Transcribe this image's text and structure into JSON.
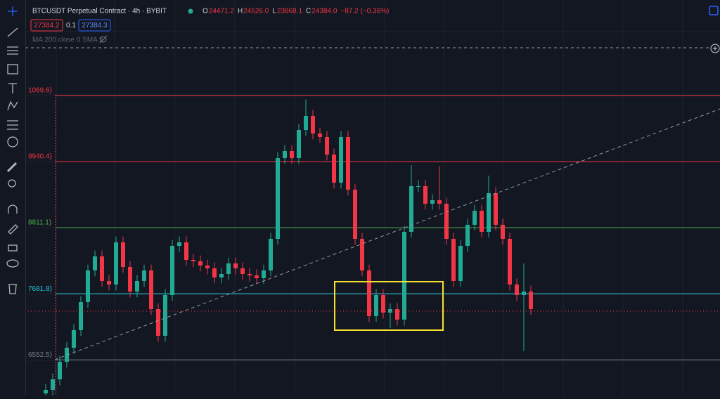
{
  "header": {
    "symbol": "BTCUSDT Perpetual Contract · 4h · BYBIT",
    "ohlc": [
      {
        "key": "O",
        "value": "24471.2"
      },
      {
        "key": "H",
        "value": "24526.0"
      },
      {
        "key": "L",
        "value": "23868.1"
      },
      {
        "key": "C",
        "value": "24384.0"
      }
    ],
    "change": "−87.2 (−0.36%)",
    "sell_price": "27384.2",
    "spread": "0.1",
    "buy_price": "27384.3",
    "indicator": "MA 200 close 0 SMA 5"
  },
  "chart_data": {
    "type": "candlestick",
    "up_color": "#22ab94",
    "down_color": "#f23645",
    "ylim": [
      15944,
      22700
    ],
    "levels": [
      {
        "value": 21069.6,
        "label": "1069.6)",
        "color": "#f23645"
      },
      {
        "value": 19940.4,
        "label": "9940.4)",
        "color": "#f23645"
      },
      {
        "value": 18811.1,
        "label": "8811.1)",
        "color": "#4caf50"
      },
      {
        "value": 17681.8,
        "label": "7681.8)",
        "color": "#26c6da"
      },
      {
        "value": 16552.5,
        "label": "6552.5)",
        "color": "#787b86"
      }
    ],
    "open": [
      15980,
      16040,
      16220,
      16520,
      16760,
      17060,
      17540,
      18080,
      18320,
      17900,
      17840,
      18560,
      18140,
      17720,
      17900,
      18080,
      17420,
      16964,
      17660,
      18500,
      18560,
      18260,
      18236,
      18164,
      18116,
      17960,
      18020,
      18200,
      18116,
      18020,
      17996,
      17948,
      18080,
      18620,
      20000,
      20120,
      20000,
      20480,
      20720,
      20420,
      20360,
      20060,
      19580,
      20360,
      19460,
      18620,
      18080,
      17300,
      17660,
      17360,
      17420,
      17240,
      18740,
      19520,
      19520,
      19220,
      19280,
      19220,
      18620,
      17900,
      18500,
      18860,
      19100,
      18740,
      19400,
      18860,
      18620,
      17840,
      17660,
      17720
    ],
    "high": [
      16140,
      16320,
      16620,
      16860,
      17160,
      17640,
      18180,
      18420,
      18420,
      18000,
      18660,
      18660,
      18240,
      18000,
      18180,
      18180,
      17520,
      17760,
      18600,
      18660,
      18660,
      18360,
      18336,
      18264,
      18216,
      18120,
      18300,
      18300,
      18216,
      18120,
      18096,
      18180,
      18720,
      20100,
      20220,
      20220,
      20580,
      21000,
      20820,
      20520,
      20460,
      20160,
      20460,
      20460,
      19560,
      18720,
      18180,
      17760,
      17760,
      17520,
      17520,
      18840,
      19880,
      19620,
      19620,
      19380,
      19860,
      19320,
      18720,
      18600,
      18960,
      19200,
      19200,
      19700,
      19500,
      18960,
      18720,
      17940,
      18200,
      17820
    ],
    "low": [
      15880,
      15940,
      16120,
      16420,
      16660,
      16960,
      17440,
      17980,
      17800,
      17740,
      17740,
      18040,
      17620,
      17620,
      17800,
      17320,
      16864,
      16864,
      17560,
      18400,
      18160,
      18136,
      18064,
      18016,
      17860,
      17860,
      17920,
      18016,
      17920,
      17896,
      17848,
      17848,
      17980,
      18520,
      19900,
      19900,
      19900,
      20380,
      20320,
      20260,
      19960,
      19480,
      19480,
      19360,
      18520,
      17980,
      17200,
      17200,
      17260,
      17100,
      17140,
      17140,
      18640,
      19420,
      19120,
      19120,
      19120,
      18520,
      17800,
      17800,
      18400,
      18760,
      18640,
      18640,
      18760,
      18520,
      17740,
      17560,
      16700,
      17320
    ],
    "close": [
      16040,
      16220,
      16520,
      16760,
      17060,
      17540,
      18080,
      18320,
      17900,
      17840,
      18560,
      18140,
      17720,
      17900,
      18080,
      17420,
      16964,
      17660,
      18500,
      18560,
      18260,
      18236,
      18164,
      18116,
      17960,
      18020,
      18200,
      18116,
      18020,
      17996,
      17948,
      18080,
      18620,
      20000,
      20120,
      20000,
      20480,
      20720,
      20420,
      20360,
      20060,
      19580,
      20360,
      19460,
      18620,
      18080,
      17300,
      17660,
      17360,
      17420,
      17240,
      18740,
      19520,
      19520,
      19220,
      19280,
      19220,
      18620,
      17900,
      18500,
      18860,
      19100,
      18740,
      19400,
      18860,
      18620,
      17840,
      17660,
      17720,
      17420
    ]
  }
}
